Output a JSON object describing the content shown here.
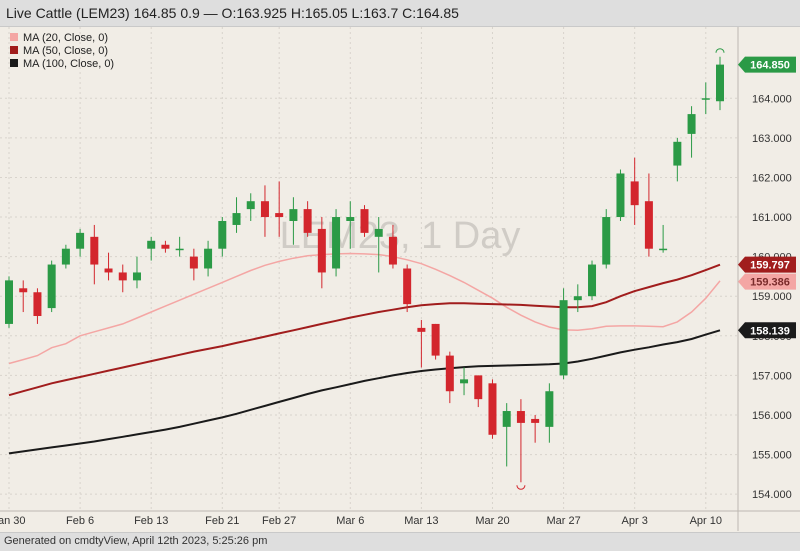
{
  "header": {
    "title": "Live Cattle (LEM23) 164.85 0.9 — O:163.925 H:165.05 L:163.7 C:164.85"
  },
  "footer": {
    "text": "Generated on cmdtyView, April 12th 2023, 5:25:26 pm"
  },
  "watermark": "LEM23, 1 Day",
  "chart_data": {
    "type": "candlestick",
    "symbol": "Live Cattle (LEM23)",
    "interval": "1 Day",
    "ylim": [
      153.6,
      165.8
    ],
    "y_ticks": [
      "154.000",
      "155.000",
      "156.000",
      "157.000",
      "158.000",
      "159.000",
      "160.000",
      "161.000",
      "162.000",
      "163.000",
      "164.000"
    ],
    "x_labels": [
      "Jan 30",
      "Feb 6",
      "Feb 13",
      "Feb 21",
      "Feb 27",
      "Mar 6",
      "Mar 13",
      "Mar 20",
      "Mar 27",
      "Apr 3",
      "Apr 10"
    ],
    "x_label_index": [
      0,
      5,
      10,
      15,
      19,
      24,
      29,
      34,
      39,
      44,
      49
    ],
    "grid": true,
    "legend_position": "top-left",
    "candles": [
      {
        "o": 158.3,
        "h": 159.5,
        "l": 158.2,
        "c": 159.4
      },
      {
        "o": 159.2,
        "h": 159.4,
        "l": 158.6,
        "c": 159.1
      },
      {
        "o": 159.1,
        "h": 159.2,
        "l": 158.3,
        "c": 158.5
      },
      {
        "o": 158.7,
        "h": 159.9,
        "l": 158.6,
        "c": 159.8
      },
      {
        "o": 159.8,
        "h": 160.3,
        "l": 159.7,
        "c": 160.2
      },
      {
        "o": 160.2,
        "h": 160.7,
        "l": 160.0,
        "c": 160.6
      },
      {
        "o": 160.5,
        "h": 160.8,
        "l": 159.3,
        "c": 159.8
      },
      {
        "o": 159.7,
        "h": 160.1,
        "l": 159.4,
        "c": 159.6
      },
      {
        "o": 159.6,
        "h": 159.8,
        "l": 159.1,
        "c": 159.4
      },
      {
        "o": 159.4,
        "h": 160.0,
        "l": 159.2,
        "c": 159.6
      },
      {
        "o": 160.2,
        "h": 160.5,
        "l": 159.9,
        "c": 160.4
      },
      {
        "o": 160.3,
        "h": 160.4,
        "l": 160.1,
        "c": 160.2
      },
      {
        "o": 160.2,
        "h": 160.5,
        "l": 160.0,
        "c": 160.2
      },
      {
        "o": 160.0,
        "h": 160.2,
        "l": 159.4,
        "c": 159.7
      },
      {
        "o": 159.7,
        "h": 160.4,
        "l": 159.5,
        "c": 160.2
      },
      {
        "o": 160.2,
        "h": 161.0,
        "l": 160.0,
        "c": 160.9
      },
      {
        "o": 160.8,
        "h": 161.5,
        "l": 160.6,
        "c": 161.1
      },
      {
        "o": 161.2,
        "h": 161.6,
        "l": 160.9,
        "c": 161.4
      },
      {
        "o": 161.4,
        "h": 161.8,
        "l": 160.5,
        "c": 161.0
      },
      {
        "o": 161.1,
        "h": 161.9,
        "l": 160.5,
        "c": 161.0
      },
      {
        "o": 160.9,
        "h": 161.5,
        "l": 160.3,
        "c": 161.2
      },
      {
        "o": 161.2,
        "h": 161.4,
        "l": 160.5,
        "c": 160.6
      },
      {
        "o": 160.7,
        "h": 161.0,
        "l": 159.2,
        "c": 159.6
      },
      {
        "o": 159.7,
        "h": 161.2,
        "l": 159.5,
        "c": 161.0
      },
      {
        "o": 160.9,
        "h": 161.4,
        "l": 160.2,
        "c": 161.0
      },
      {
        "o": 161.2,
        "h": 161.3,
        "l": 160.5,
        "c": 160.6
      },
      {
        "o": 160.5,
        "h": 161.0,
        "l": 159.6,
        "c": 160.7
      },
      {
        "o": 160.5,
        "h": 160.8,
        "l": 159.7,
        "c": 159.8
      },
      {
        "o": 159.7,
        "h": 159.8,
        "l": 158.6,
        "c": 158.8
      },
      {
        "o": 158.2,
        "h": 158.4,
        "l": 157.2,
        "c": 158.1
      },
      {
        "o": 158.3,
        "h": 158.3,
        "l": 157.4,
        "c": 157.5
      },
      {
        "o": 157.5,
        "h": 157.6,
        "l": 156.3,
        "c": 156.6
      },
      {
        "o": 156.8,
        "h": 157.2,
        "l": 156.5,
        "c": 156.9
      },
      {
        "o": 157.0,
        "h": 157.0,
        "l": 156.2,
        "c": 156.4
      },
      {
        "o": 156.8,
        "h": 156.9,
        "l": 155.4,
        "c": 155.5
      },
      {
        "o": 155.7,
        "h": 156.3,
        "l": 154.7,
        "c": 156.1
      },
      {
        "o": 156.1,
        "h": 156.4,
        "l": 154.3,
        "c": 155.8
      },
      {
        "o": 155.9,
        "h": 156.0,
        "l": 155.3,
        "c": 155.8
      },
      {
        "o": 155.7,
        "h": 156.8,
        "l": 155.3,
        "c": 156.6
      },
      {
        "o": 157.0,
        "h": 159.2,
        "l": 156.9,
        "c": 158.9
      },
      {
        "o": 158.9,
        "h": 159.3,
        "l": 158.6,
        "c": 159.0
      },
      {
        "o": 159.0,
        "h": 159.9,
        "l": 158.9,
        "c": 159.8
      },
      {
        "o": 159.8,
        "h": 161.2,
        "l": 159.7,
        "c": 161.0
      },
      {
        "o": 161.0,
        "h": 162.2,
        "l": 160.9,
        "c": 162.1
      },
      {
        "o": 161.9,
        "h": 162.5,
        "l": 160.8,
        "c": 161.3
      },
      {
        "o": 161.4,
        "h": 162.1,
        "l": 160.0,
        "c": 160.2
      },
      {
        "o": 160.2,
        "h": 160.8,
        "l": 160.1,
        "c": 160.2
      },
      {
        "o": 162.3,
        "h": 163.0,
        "l": 161.9,
        "c": 162.9
      },
      {
        "o": 163.1,
        "h": 163.8,
        "l": 162.5,
        "c": 163.6
      },
      {
        "o": 164.0,
        "h": 164.4,
        "l": 163.6,
        "c": 164.0
      },
      {
        "o": 163.925,
        "h": 165.05,
        "l": 163.7,
        "c": 164.85
      }
    ],
    "series": [
      {
        "name": "MA (20, Close, 0)",
        "color": "#f4a6a4",
        "values": [
          157.3,
          157.4,
          157.5,
          157.7,
          157.8,
          158.0,
          158.1,
          158.2,
          158.3,
          158.45,
          158.6,
          158.75,
          158.9,
          159.05,
          159.2,
          159.35,
          159.5,
          159.65,
          159.78,
          159.88,
          159.96,
          160.02,
          160.05,
          160.07,
          160.08,
          160.07,
          160.05,
          160.0,
          159.92,
          159.82,
          159.68,
          159.52,
          159.35,
          159.15,
          158.95,
          158.72,
          158.52,
          158.35,
          158.22,
          158.15,
          158.14,
          158.18,
          158.24,
          158.25,
          158.25,
          158.24,
          158.23,
          158.35,
          158.6,
          158.95,
          159.386
        ]
      },
      {
        "name": "MA (50, Close, 0)",
        "color": "#a11d1d",
        "values": [
          156.5,
          156.6,
          156.7,
          156.8,
          156.88,
          156.96,
          157.04,
          157.12,
          157.2,
          157.28,
          157.36,
          157.44,
          157.52,
          157.6,
          157.67,
          157.74,
          157.82,
          157.9,
          157.98,
          158.06,
          158.14,
          158.22,
          158.3,
          158.38,
          158.46,
          158.53,
          158.6,
          158.66,
          158.72,
          158.77,
          158.8,
          158.82,
          158.82,
          158.81,
          158.8,
          158.79,
          158.78,
          158.76,
          158.74,
          158.72,
          158.72,
          158.75,
          158.85,
          159.0,
          159.13,
          159.23,
          159.33,
          159.42,
          159.53,
          159.66,
          159.797
        ]
      },
      {
        "name": "MA (100, Close, 0)",
        "color": "#1a1a1a",
        "values": [
          155.03,
          155.08,
          155.13,
          155.18,
          155.23,
          155.28,
          155.33,
          155.39,
          155.45,
          155.51,
          155.57,
          155.63,
          155.7,
          155.78,
          155.86,
          155.94,
          156.03,
          156.13,
          156.23,
          156.33,
          156.43,
          156.53,
          156.62,
          156.7,
          156.78,
          156.86,
          156.93,
          157.0,
          157.06,
          157.11,
          157.15,
          157.18,
          157.21,
          157.23,
          157.24,
          157.25,
          157.26,
          157.27,
          157.28,
          157.3,
          157.35,
          157.42,
          157.5,
          157.58,
          157.65,
          157.71,
          157.78,
          157.84,
          157.92,
          158.03,
          158.139
        ]
      }
    ],
    "last_value_labels": [
      {
        "text": "164.850",
        "value": 164.85,
        "color": "#2b9a46"
      },
      {
        "text": "159.797",
        "value": 159.797,
        "color": "#a11d1d"
      },
      {
        "text": "159.386",
        "value": 159.386,
        "color": "#f4a6a4"
      },
      {
        "text": "158.139",
        "value": 158.139,
        "color": "#1a1a1a"
      }
    ],
    "colors": {
      "up": "#2b9a46",
      "down": "#d3262d",
      "grid": "#d8d3cc",
      "background": "#f1ede6"
    }
  }
}
